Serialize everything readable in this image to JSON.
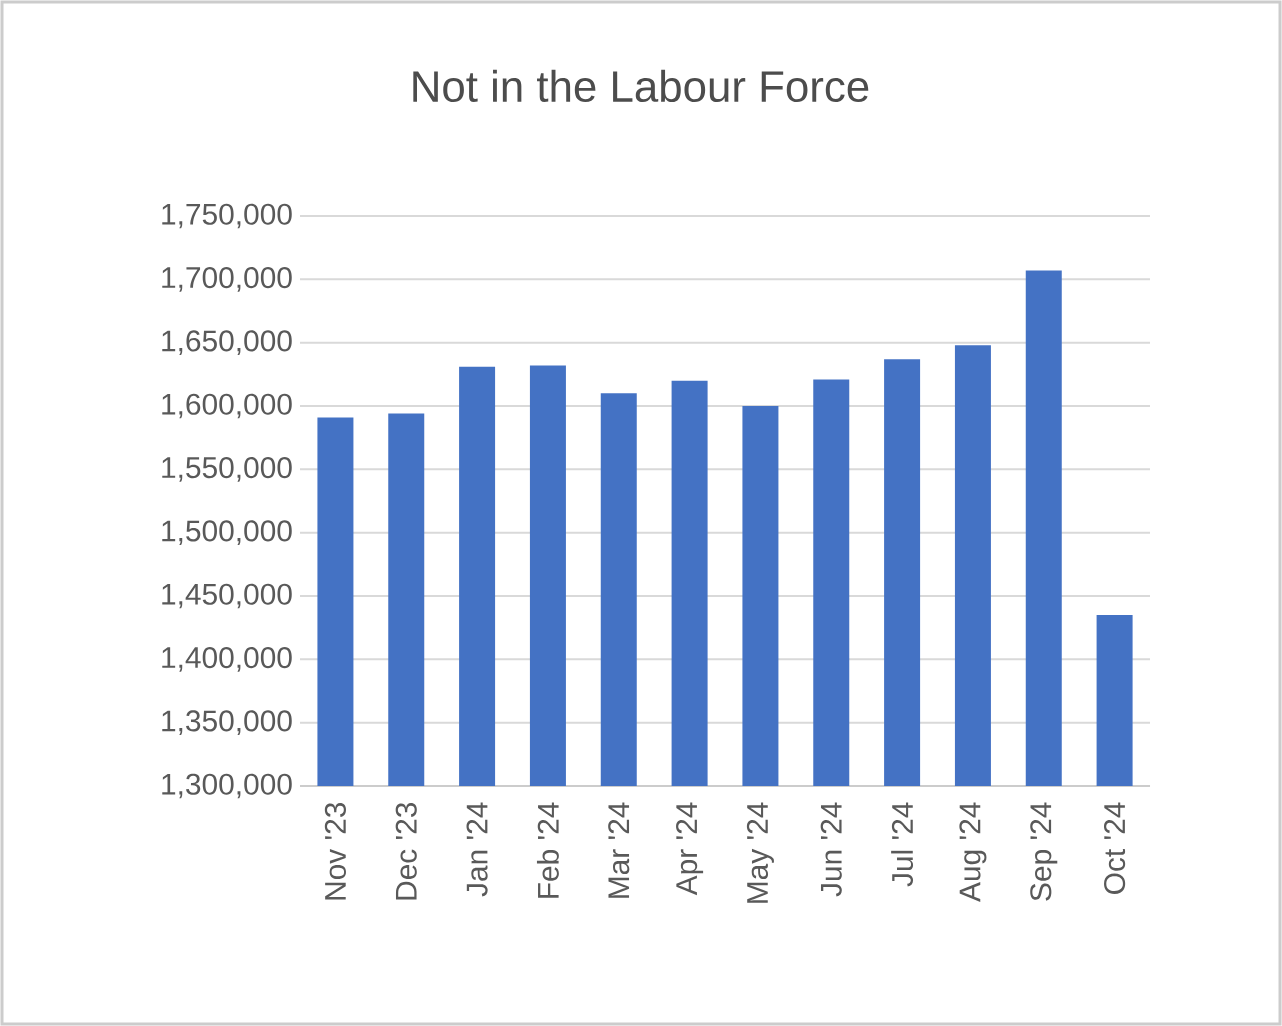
{
  "chart_data": {
    "type": "bar",
    "title": "Not in the Labour Force",
    "categories": [
      "Nov '23",
      "Dec '23",
      "Jan '24",
      "Feb '24",
      "Mar '24",
      "Apr '24",
      "May '24",
      "Jun '24",
      "Jul '24",
      "Aug '24",
      "Sep '24",
      "Oct '24"
    ],
    "values": [
      1591000,
      1594000,
      1631000,
      1632000,
      1610000,
      1620000,
      1600000,
      1621000,
      1637000,
      1648000,
      1707000,
      1435000
    ],
    "color": "#4472c4",
    "ylim": [
      1300000,
      1750000
    ],
    "yticks": [
      {
        "value": 1300000,
        "label": "1,300,000"
      },
      {
        "value": 1350000,
        "label": "1,350,000"
      },
      {
        "value": 1400000,
        "label": "1,400,000"
      },
      {
        "value": 1450000,
        "label": "1,450,000"
      },
      {
        "value": 1500000,
        "label": "1,500,000"
      },
      {
        "value": 1550000,
        "label": "1,550,000"
      },
      {
        "value": 1600000,
        "label": "1,600,000"
      },
      {
        "value": 1650000,
        "label": "1,650,000"
      },
      {
        "value": 1700000,
        "label": "1,700,000"
      },
      {
        "value": 1750000,
        "label": "1,750,000"
      }
    ],
    "grid": "y"
  }
}
